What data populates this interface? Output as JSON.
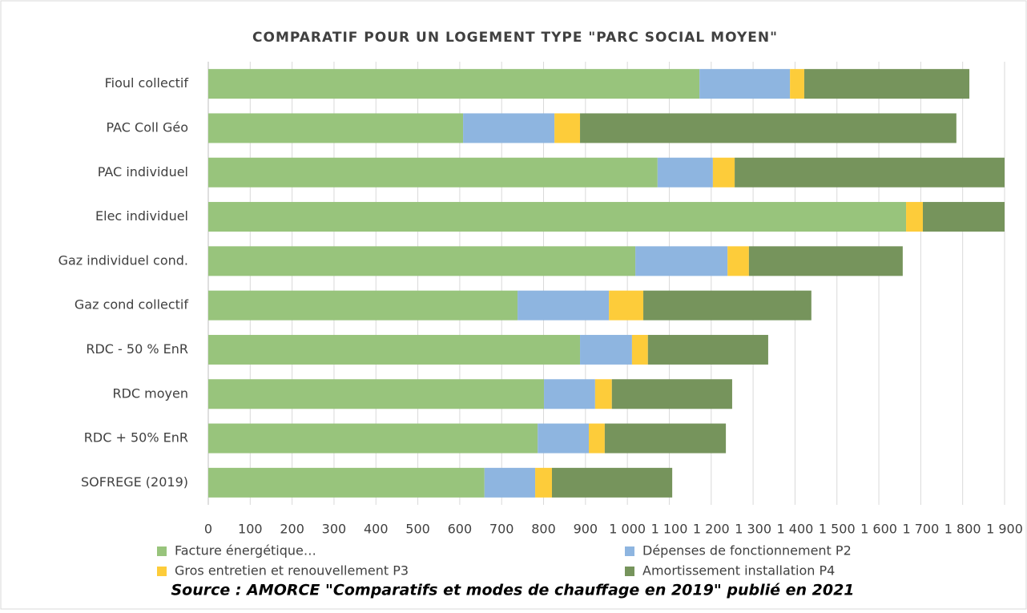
{
  "chart_data": {
    "type": "stacked-barh",
    "title": "COMPARATIF POUR UN LOGEMENT TYPE \"PARC SOCIAL MOYEN\"",
    "source": "Source : AMORCE \"Comparatifs et modes de chauffage en 2019\" publié en 2021",
    "categories": [
      "Fioul collectif",
      "PAC Coll Géo",
      "PAC individuel",
      "Elec individuel",
      "Gaz individuel cond.",
      "Gaz cond collectif",
      "RDC - 50 % EnR",
      "RDC moyen",
      "RDC + 50% EnR",
      "SOFREGE (2019)"
    ],
    "series": [
      {
        "name": "Facture énergétique…",
        "color": "#98c47c",
        "values": [
          1172,
          608,
          1072,
          1665,
          1019,
          738,
          887,
          801,
          786,
          659
        ]
      },
      {
        "name": "Dépenses de fonctionnement P2",
        "color": "#8eb5e0",
        "values": [
          216,
          218,
          132,
          0,
          220,
          218,
          124,
          122,
          122,
          121
        ]
      },
      {
        "name": "Gros entretien et renouvellement P3",
        "color": "#fdcc3a",
        "values": [
          34,
          61,
          52,
          40,
          51,
          82,
          38,
          40,
          38,
          40
        ]
      },
      {
        "name": "Amortissement installation P4",
        "color": "#76945c",
        "values": [
          394,
          898,
          644,
          195,
          367,
          401,
          287,
          287,
          289,
          287
        ]
      }
    ],
    "xlim": [
      0,
      1900
    ],
    "xticks": [
      0,
      100,
      200,
      300,
      400,
      500,
      600,
      700,
      800,
      900,
      {
        "value": 1000,
        "label": "1 000"
      },
      {
        "value": 1100,
        "label": "1 100"
      },
      {
        "value": 1200,
        "label": "1 200"
      },
      {
        "value": 1300,
        "label": "1 300"
      },
      {
        "value": 1400,
        "label": "1 400"
      },
      {
        "value": 1500,
        "label": "1 500"
      },
      {
        "value": 1600,
        "label": "1 600"
      },
      {
        "value": 1700,
        "label": "1 700"
      },
      {
        "value": 1800,
        "label": "1 800"
      },
      {
        "value": 1900,
        "label": "1 900"
      }
    ],
    "grid": true
  }
}
